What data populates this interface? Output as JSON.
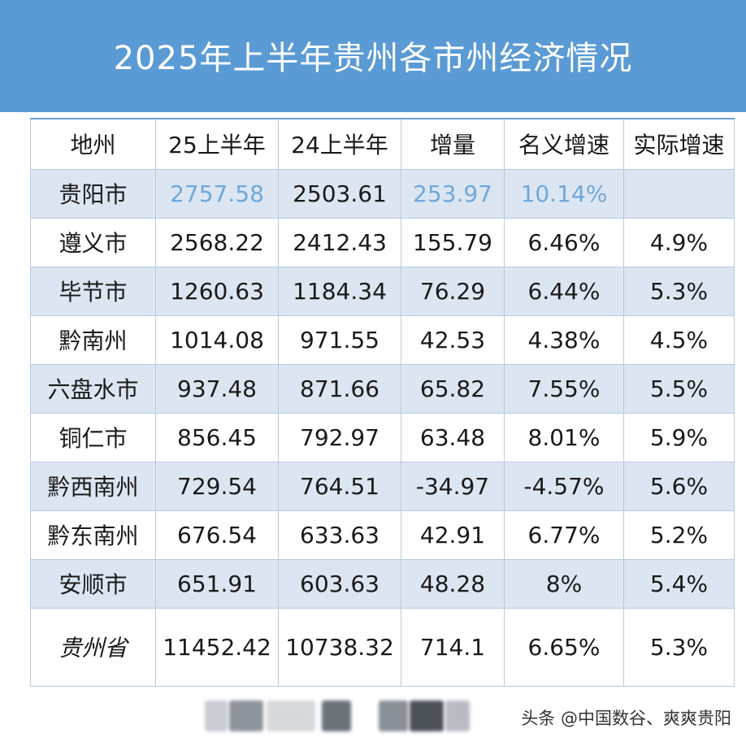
{
  "title": "2025年上半年贵州各市州经济情况",
  "table": {
    "headers": [
      "地州",
      "25上半年",
      "24上半年",
      "增量",
      "名义增速",
      "实际增速"
    ],
    "rows": [
      {
        "name": "贵阳市",
        "h1_2025": "2757.58",
        "h1_2024": "2503.61",
        "increase": "253.97",
        "nominal": "10.14%",
        "real": ""
      },
      {
        "name": "遵义市",
        "h1_2025": "2568.22",
        "h1_2024": "2412.43",
        "increase": "155.79",
        "nominal": "6.46%",
        "real": "4.9%"
      },
      {
        "name": "毕节市",
        "h1_2025": "1260.63",
        "h1_2024": "1184.34",
        "increase": "76.29",
        "nominal": "6.44%",
        "real": "5.3%"
      },
      {
        "name": "黔南州",
        "h1_2025": "1014.08",
        "h1_2024": "971.55",
        "increase": "42.53",
        "nominal": "4.38%",
        "real": "4.5%"
      },
      {
        "name": "六盘水市",
        "h1_2025": "937.48",
        "h1_2024": "871.66",
        "increase": "65.82",
        "nominal": "7.55%",
        "real": "5.5%"
      },
      {
        "name": "铜仁市",
        "h1_2025": "856.45",
        "h1_2024": "792.97",
        "increase": "63.48",
        "nominal": "8.01%",
        "real": "5.9%"
      },
      {
        "name": "黔西南州",
        "h1_2025": "729.54",
        "h1_2024": "764.51",
        "increase": "-34.97",
        "nominal": "-4.57%",
        "real": "5.6%"
      },
      {
        "name": "黔东南州",
        "h1_2025": "676.54",
        "h1_2024": "633.63",
        "increase": "42.91",
        "nominal": "6.77%",
        "real": "5.2%"
      },
      {
        "name": "安顺市",
        "h1_2025": "651.91",
        "h1_2024": "603.63",
        "increase": "48.28",
        "nominal": "8%",
        "real": "5.4%"
      }
    ],
    "total": {
      "name": "贵州省",
      "h1_2025": "11452.42",
      "h1_2024": "10738.32",
      "increase": "714.1",
      "nominal": "6.65%",
      "real": "5.3%"
    }
  },
  "watermark": "头条 @中国数谷、爽爽贵阳",
  "colors": {
    "title_bg": "#5b9bd5",
    "alt_row": "#dce6f2",
    "highlight": "#6fa8dc"
  }
}
